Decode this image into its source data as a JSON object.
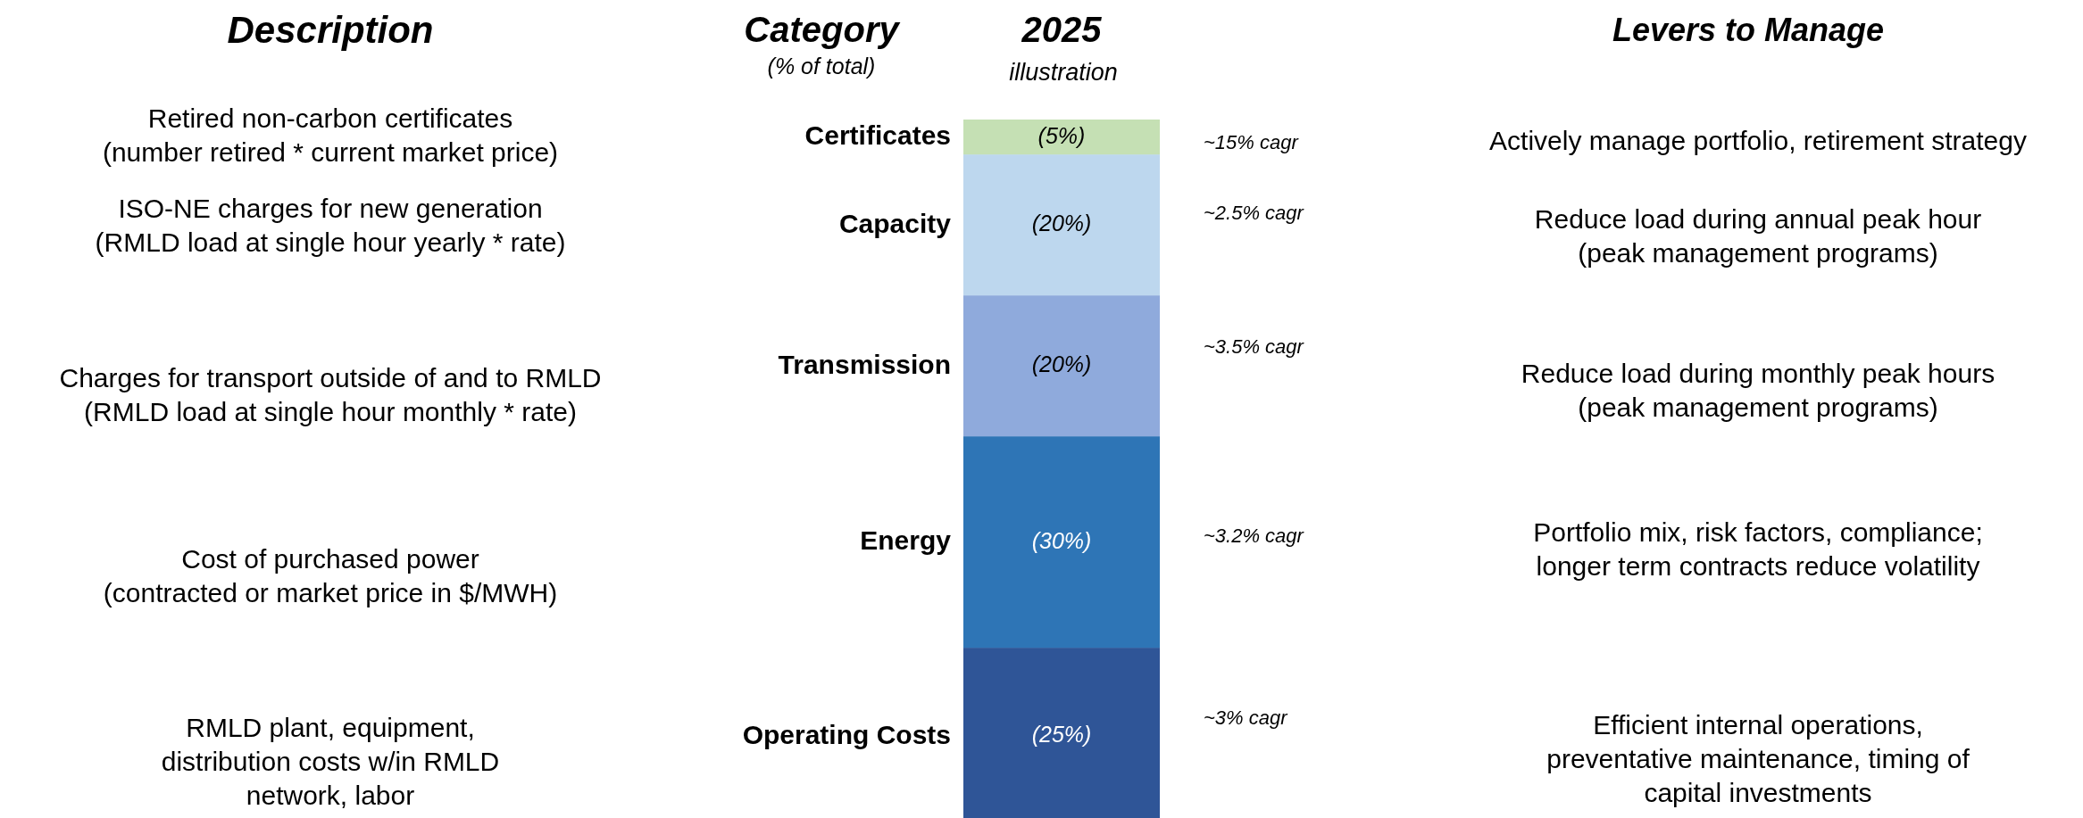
{
  "chart_data": {
    "type": "bar",
    "stacked": true,
    "categories": [
      "2025"
    ],
    "tick_labels": false,
    "series": [
      {
        "name": "Operating Costs",
        "color": "#2f5597",
        "values": [
          25
        ],
        "value_labels": [
          "(25%)"
        ]
      },
      {
        "name": "Energy",
        "color": "#2e75b6",
        "values": [
          30
        ],
        "value_labels": [
          "(30%)"
        ]
      },
      {
        "name": "Transmission",
        "color": "#8faadc",
        "values": [
          20
        ],
        "value_labels": [
          "(20%)"
        ]
      },
      {
        "name": "Capacity",
        "color": "#bdd7ee",
        "values": [
          20
        ],
        "value_labels": [
          "(20%)"
        ]
      },
      {
        "name": "Certificates",
        "color": "#c5e0b4",
        "values": [
          5
        ],
        "value_labels": [
          "(5%)"
        ]
      }
    ],
    "annotations": [
      "Description",
      "Category",
      "(% of total)",
      "illustration",
      "Levers to Manage",
      "Retired non-carbon certificates\n(number retired * current market price)",
      "~15% cagr",
      "Actively manage portfolio, retirement strategy",
      "ISO-NE charges for new generation\n(RMLD load at single hour yearly * rate)",
      "~2.5% cagr",
      "Reduce load during annual peak hour\n(peak management programs)",
      "Charges for transport outside of and to RMLD\n(RMLD load at single hour monthly * rate)",
      "~3.5% cagr",
      "Reduce load during monthly peak hours\n(peak management programs)",
      "Cost of purchased power\n(contracted or market price in $/MWH)",
      "~3.2% cagr",
      "Portfolio mix, risk factors, compliance;\nlonger term contracts reduce volatility",
      "RMLD plant, equipment,\ndistribution costs w/in RMLD\nnetwork, labor",
      "~3% cagr",
      "Efficient internal operations,\npreventative maintenance, timing of\ncapital investments"
    ]
  }
}
